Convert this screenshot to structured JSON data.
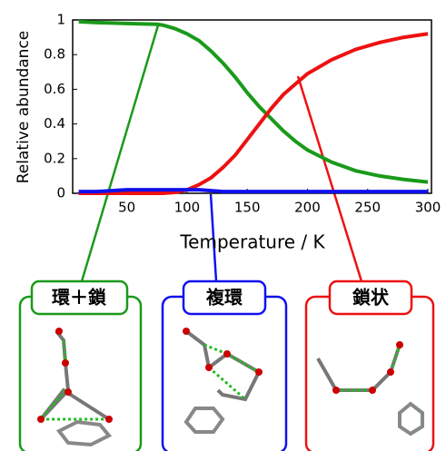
{
  "chart_data": {
    "type": "line",
    "xlabel": "Temperature / K",
    "ylabel": "Relative abundance",
    "x": [
      10,
      25,
      50,
      75,
      80,
      90,
      100,
      110,
      120,
      130,
      140,
      150,
      160,
      170,
      180,
      190,
      200,
      220,
      240,
      260,
      280,
      300
    ],
    "series": [
      {
        "color": "#1a9a1a",
        "values": [
          0.99,
          0.985,
          0.98,
          0.975,
          0.97,
          0.95,
          0.92,
          0.88,
          0.82,
          0.75,
          0.67,
          0.58,
          0.5,
          0.43,
          0.36,
          0.3,
          0.25,
          0.18,
          0.13,
          0.1,
          0.08,
          0.065
        ]
      },
      {
        "color": "#ee1111",
        "values": [
          0,
          0,
          0,
          0,
          0,
          0.005,
          0.02,
          0.05,
          0.09,
          0.15,
          0.22,
          0.31,
          0.4,
          0.49,
          0.57,
          0.63,
          0.69,
          0.77,
          0.83,
          0.87,
          0.9,
          0.92
        ]
      },
      {
        "color": "#1111ee",
        "values": [
          0.01,
          0.01,
          0.02,
          0.02,
          0.02,
          0.02,
          0.02,
          0.02,
          0.015,
          0.01,
          0.01,
          0.01,
          0.01,
          0.01,
          0.01,
          0.01,
          0.01,
          0.01,
          0.01,
          0.01,
          0.01,
          0.01
        ]
      }
    ],
    "xlim": [
      5,
      303
    ],
    "ylim": [
      0,
      1
    ],
    "xticks": [
      50,
      100,
      150,
      200,
      250,
      300
    ],
    "yticks": [
      0,
      0.2,
      0.4,
      0.6,
      0.8,
      1
    ],
    "annotations": [
      "環＋鎖",
      "複環",
      "鎖状"
    ]
  }
}
